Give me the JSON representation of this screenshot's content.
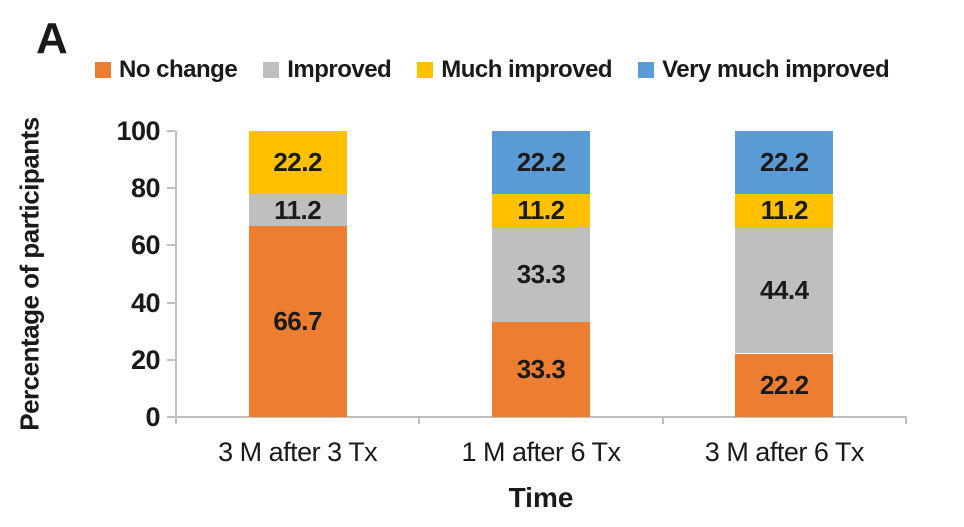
{
  "panel_label": "A",
  "legend": {
    "position": "top",
    "items": [
      {
        "label": "No change",
        "color": "#ED7D31"
      },
      {
        "label": "Improved",
        "color": "#BFBFBF"
      },
      {
        "label": "Much improved",
        "color": "#FFC000"
      },
      {
        "label": "Very much improved",
        "color": "#5B9BD5"
      }
    ]
  },
  "chart_data": {
    "type": "bar",
    "stacked": true,
    "title": "",
    "xlabel": "Time",
    "ylabel": "Percentage of participants",
    "ylim": [
      0,
      100
    ],
    "yticks": [
      0,
      20,
      40,
      60,
      80,
      100
    ],
    "grid": false,
    "legend_position": "top",
    "categories": [
      "3 M after 3 Tx",
      "1 M after 6 Tx",
      "3 M after 6 Tx"
    ],
    "series": [
      {
        "name": "No change",
        "color": "#ED7D31",
        "values": [
          66.7,
          33.3,
          22.2
        ]
      },
      {
        "name": "Improved",
        "color": "#BFBFBF",
        "values": [
          11.2,
          33.3,
          44.4
        ]
      },
      {
        "name": "Much improved",
        "color": "#FFC000",
        "values": [
          22.2,
          11.2,
          11.2
        ]
      },
      {
        "name": "Very much improved",
        "color": "#5B9BD5",
        "values": [
          0,
          22.2,
          22.2
        ]
      }
    ],
    "data_labels": true,
    "axis_color": "#BFBFBF",
    "text_color": "#1A1A1A"
  }
}
